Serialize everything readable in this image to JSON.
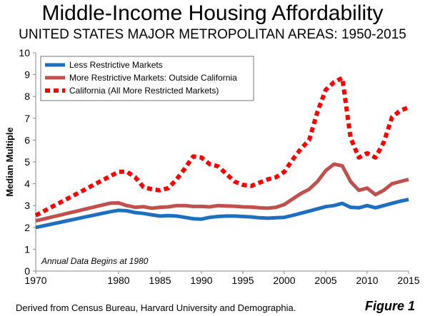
{
  "figure_label": "Figure 1",
  "source_note": "Derived from Census Bureau, Harvard University and Demographia.",
  "colors": {
    "less": "#1f6fc0",
    "more": "#c0504d",
    "california": "#ff0000"
  },
  "chart_data": {
    "type": "line",
    "title": "Middle-Income Housing Affordability",
    "subtitle": "UNITED STATES MAJOR METROPOLITAN AREAS: 1950-2015",
    "ylabel": "Median Multiple",
    "xlabel": "",
    "ylim": [
      0,
      10
    ],
    "yticks": [
      "0",
      "1",
      "2",
      "3",
      "4",
      "5",
      "6",
      "7",
      "8",
      "9",
      "10"
    ],
    "xticks": [
      "1970",
      "1980",
      "1985",
      "1990",
      "1995",
      "2000",
      "2005",
      "2010",
      "2015"
    ],
    "legend_position": "top-left",
    "annotation": "Annual Data Begins at 1980",
    "grid": false,
    "series": [
      {
        "name": "Less Restrictive Markets",
        "style": "solid",
        "x": [
          1970,
          1971,
          1972,
          1973,
          1974,
          1975,
          1976,
          1977,
          1978,
          1979,
          1980,
          1981,
          1982,
          1983,
          1984,
          1985,
          1986,
          1987,
          1988,
          1989,
          1990,
          1991,
          1992,
          1993,
          1994,
          1995,
          1996,
          1997,
          1998,
          1999,
          2000,
          2001,
          2002,
          2003,
          2004,
          2005,
          2006,
          2007,
          2008,
          2009,
          2010,
          2011,
          2012,
          2013,
          2014,
          2015
        ],
        "values": [
          2.0,
          2.08,
          2.16,
          2.24,
          2.32,
          2.4,
          2.48,
          2.56,
          2.64,
          2.72,
          2.78,
          2.76,
          2.68,
          2.64,
          2.58,
          2.52,
          2.54,
          2.52,
          2.46,
          2.4,
          2.38,
          2.46,
          2.5,
          2.52,
          2.52,
          2.5,
          2.48,
          2.44,
          2.42,
          2.44,
          2.46,
          2.55,
          2.65,
          2.75,
          2.85,
          2.95,
          3.0,
          3.1,
          2.92,
          2.9,
          3.0,
          2.9,
          3.0,
          3.1,
          3.2,
          3.28
        ]
      },
      {
        "name": "More Restrictive Markets: Outside California",
        "style": "solid",
        "x": [
          1970,
          1971,
          1972,
          1973,
          1974,
          1975,
          1976,
          1977,
          1978,
          1979,
          1980,
          1981,
          1982,
          1983,
          1984,
          1985,
          1986,
          1987,
          1988,
          1989,
          1990,
          1991,
          1992,
          1993,
          1994,
          1995,
          1996,
          1997,
          1998,
          1999,
          2000,
          2001,
          2002,
          2003,
          2004,
          2005,
          2006,
          2007,
          2008,
          2009,
          2010,
          2011,
          2012,
          2013,
          2014,
          2015
        ],
        "values": [
          2.3,
          2.39,
          2.48,
          2.57,
          2.66,
          2.75,
          2.84,
          2.93,
          3.02,
          3.11,
          3.12,
          3.0,
          2.92,
          2.95,
          2.88,
          2.92,
          2.94,
          3.0,
          3.0,
          2.96,
          2.96,
          2.94,
          3.0,
          2.98,
          2.97,
          2.94,
          2.93,
          2.9,
          2.88,
          2.92,
          3.05,
          3.3,
          3.55,
          3.75,
          4.1,
          4.6,
          4.9,
          4.82,
          4.1,
          3.7,
          3.8,
          3.5,
          3.7,
          4.0,
          4.1,
          4.2
        ]
      },
      {
        "name": "California (All More Restricted Markets)",
        "style": "dotted",
        "x": [
          1970,
          1971,
          1972,
          1973,
          1974,
          1975,
          1976,
          1977,
          1978,
          1979,
          1980,
          1981,
          1982,
          1983,
          1984,
          1985,
          1986,
          1987,
          1988,
          1989,
          1990,
          1991,
          1992,
          1993,
          1994,
          1995,
          1996,
          1997,
          1998,
          1999,
          2000,
          2001,
          2002,
          2003,
          2004,
          2005,
          2006,
          2007,
          2008,
          2009,
          2010,
          2011,
          2012,
          2013,
          2014,
          2015
        ],
        "values": [
          2.55,
          2.75,
          2.95,
          3.15,
          3.35,
          3.55,
          3.75,
          3.95,
          4.15,
          4.35,
          4.55,
          4.55,
          4.3,
          3.85,
          3.75,
          3.7,
          3.8,
          4.2,
          4.7,
          5.25,
          5.2,
          4.9,
          4.8,
          4.45,
          4.1,
          3.95,
          3.9,
          4.05,
          4.2,
          4.3,
          4.55,
          5.1,
          5.6,
          6.0,
          7.3,
          8.3,
          8.65,
          8.85,
          6.1,
          5.2,
          5.4,
          5.2,
          5.9,
          7.05,
          7.35,
          7.5
        ]
      }
    ]
  }
}
